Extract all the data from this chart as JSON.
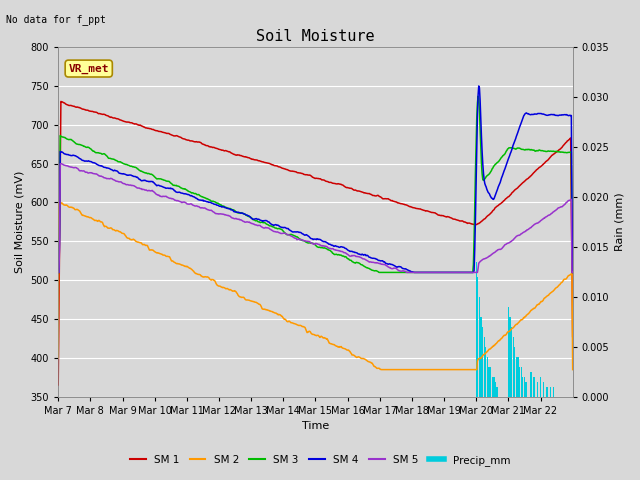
{
  "title": "Soil Moisture",
  "top_left_text": "No data for f_ppt",
  "ylabel_left": "Soil Moisture (mV)",
  "ylabel_right": "Rain (mm)",
  "xlabel": "Time",
  "ylim_left": [
    350,
    800
  ],
  "ylim_right": [
    0.0,
    0.035
  ],
  "bg_color": "#d8d8d8",
  "plot_bg_color": "#d8d8d8",
  "line_colors": {
    "SM1": "#cc0000",
    "SM2": "#ff9900",
    "SM3": "#00bb00",
    "SM4": "#0000dd",
    "SM5": "#9933cc",
    "Precip": "#00ccdd"
  },
  "x_tick_labels": [
    "Mar 7",
    "Mar 8",
    "Mar 9",
    "Mar 10",
    "Mar 11",
    "Mar 12",
    "Mar 13",
    "Mar 14",
    "Mar 15",
    "Mar 16",
    "Mar 17",
    "Mar 18",
    "Mar 19",
    "Mar 20",
    "Mar 21",
    "Mar 22"
  ],
  "n_days": 16,
  "yticks_left": [
    350,
    400,
    450,
    500,
    550,
    600,
    650,
    700,
    750,
    800
  ],
  "yticks_right": [
    0.0,
    0.005,
    0.01,
    0.015,
    0.02,
    0.025,
    0.03,
    0.035
  ],
  "figsize": [
    6.4,
    4.8
  ],
  "dpi": 100
}
